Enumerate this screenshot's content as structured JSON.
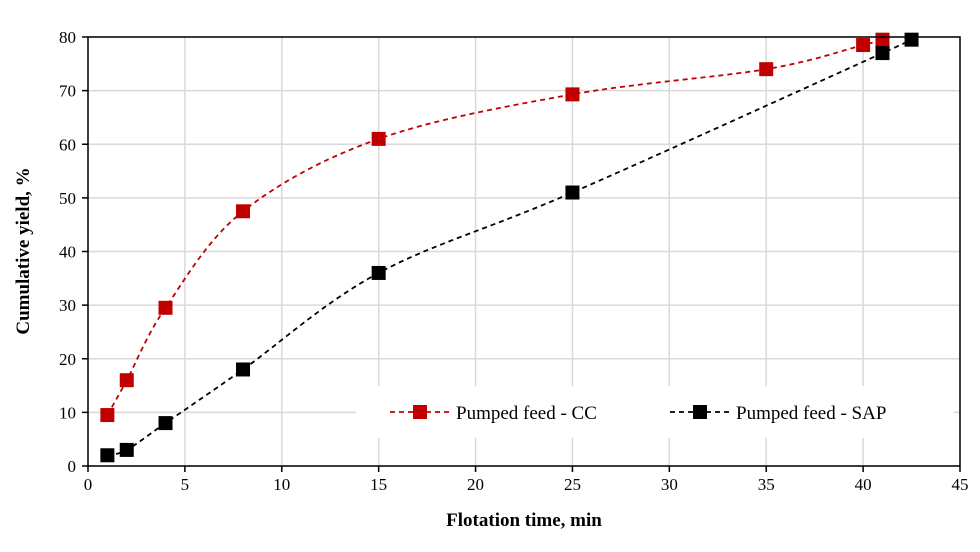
{
  "chart_data": {
    "type": "line",
    "title": "",
    "xlabel": "Flotation time, min",
    "ylabel": "Cumulative yield, %",
    "xlim": [
      0,
      45
    ],
    "ylim": [
      0,
      80
    ],
    "xticks": [
      0,
      5,
      10,
      15,
      20,
      25,
      30,
      35,
      40,
      45
    ],
    "yticks": [
      0,
      10,
      20,
      30,
      40,
      50,
      60,
      70,
      80
    ],
    "grid": true,
    "legend_position": "bottom-right",
    "series": [
      {
        "name": "Pumped feed - CC",
        "color": "#c00000",
        "marker": "square",
        "line": "dashed-smooth",
        "x": [
          1,
          2,
          4,
          8,
          15,
          25,
          35,
          40,
          41
        ],
        "y": [
          9.5,
          16,
          29.5,
          47.5,
          61,
          69.3,
          74,
          78.5,
          79.5
        ]
      },
      {
        "name": "Pumped feed - SAP",
        "color": "#000000",
        "marker": "square",
        "line": "dashed-smooth",
        "x": [
          1,
          2,
          4,
          8,
          15,
          25,
          41,
          42.5
        ],
        "y": [
          2,
          3,
          8,
          18,
          36,
          51,
          77,
          79.5
        ]
      }
    ]
  }
}
